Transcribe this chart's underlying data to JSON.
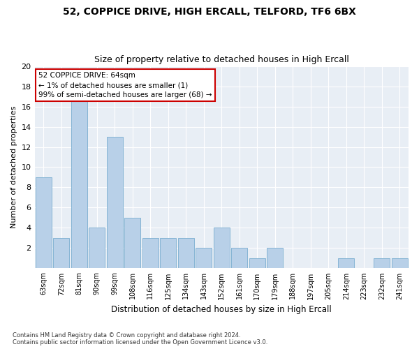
{
  "title": "52, COPPICE DRIVE, HIGH ERCALL, TELFORD, TF6 6BX",
  "subtitle": "Size of property relative to detached houses in High Ercall",
  "xlabel": "Distribution of detached houses by size in High Ercall",
  "ylabel": "Number of detached properties",
  "categories": [
    "63sqm",
    "72sqm",
    "81sqm",
    "90sqm",
    "99sqm",
    "108sqm",
    "116sqm",
    "125sqm",
    "134sqm",
    "143sqm",
    "152sqm",
    "161sqm",
    "170sqm",
    "179sqm",
    "188sqm",
    "197sqm",
    "205sqm",
    "214sqm",
    "223sqm",
    "232sqm",
    "241sqm"
  ],
  "values": [
    9,
    3,
    17,
    4,
    13,
    5,
    3,
    3,
    3,
    2,
    4,
    2,
    1,
    2,
    0,
    0,
    0,
    1,
    0,
    1,
    1
  ],
  "bar_color": "#b8d0e8",
  "bar_edge_color": "#7aadd0",
  "bg_color": "#e8eef5",
  "annotation_text": "52 COPPICE DRIVE: 64sqm\n← 1% of detached houses are smaller (1)\n99% of semi-detached houses are larger (68) →",
  "annotation_box_color": "#ffffff",
  "annotation_box_edge_color": "#cc0000",
  "ylim": [
    0,
    20
  ],
  "yticks": [
    0,
    2,
    4,
    6,
    8,
    10,
    12,
    14,
    16,
    18,
    20
  ],
  "footer_line1": "Contains HM Land Registry data © Crown copyright and database right 2024.",
  "footer_line2": "Contains public sector information licensed under the Open Government Licence v3.0."
}
